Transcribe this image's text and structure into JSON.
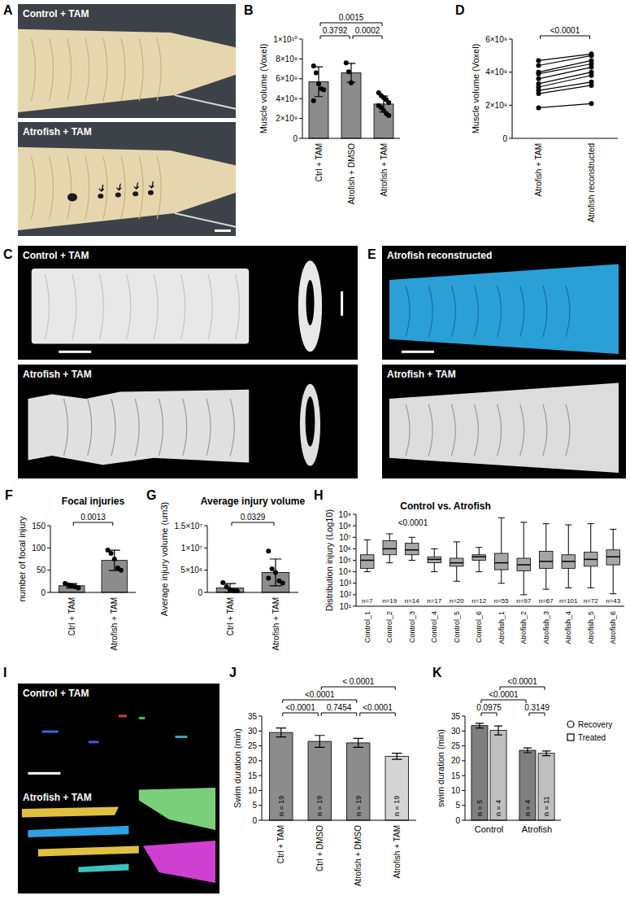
{
  "chart_data": [
    {
      "panel": "B",
      "type": "bar",
      "y_label": "Muscle volume (Voxel)",
      "categories": [
        "Ctrl + TAM",
        "Atrofish + DMSO",
        "Atrofish + TAM"
      ],
      "values": [
        5700000000.0,
        6600000000.0,
        3450000000.0
      ],
      "errors": [
        1500000000.0,
        950000000.0,
        800000000.0
      ],
      "points": [
        [
          7300000000.0,
          6600000000.0,
          5500000000.0,
          5000000000.0,
          4900000000.0,
          3800000000.0
        ],
        [
          7600000000.0,
          6700000000.0,
          5600000000.0
        ],
        [
          4600000000.0,
          4300000000.0,
          4100000000.0,
          3900000000.0,
          3600000000.0,
          3300000000.0,
          3100000000.0,
          2800000000.0,
          2500000000.0,
          2300000000.0
        ]
      ],
      "color": "#8c8c8c",
      "ylim": [
        0,
        10000000000.0
      ],
      "yticks": [
        0,
        {
          "value": 2000000000.0,
          "label": "2×10⁹"
        },
        {
          "value": 4000000000.0,
          "label": "4×10⁹"
        },
        {
          "value": 6000000000.0,
          "label": "6×10⁹"
        },
        {
          "value": 8000000000.0,
          "label": "8×10⁹"
        },
        {
          "value": 10000000000.0,
          "label": "1×10¹⁰"
        }
      ],
      "annotations": [
        {
          "from": 0,
          "to": 1,
          "label": "0.3792"
        },
        {
          "from": 1,
          "to": 2,
          "label": "0.0002"
        },
        {
          "from": 0,
          "to": 2,
          "label": "0.0015"
        }
      ]
    },
    {
      "panel": "D",
      "type": "line",
      "y_label": "Muscle volume (Voxel)",
      "categories": [
        "Atrofish + TAM",
        "Atrofish reconstructed"
      ],
      "series": [
        {
          "values": [
            4700000000.0,
            5100000000.0
          ]
        },
        {
          "values": [
            4400000000.0,
            5000000000.0
          ]
        },
        {
          "values": [
            4000000000.0,
            4700000000.0
          ]
        },
        {
          "values": [
            3900000000.0,
            4500000000.0
          ]
        },
        {
          "values": [
            3600000000.0,
            4300000000.0
          ]
        },
        {
          "values": [
            3300000000.0,
            4000000000.0
          ]
        },
        {
          "values": [
            3100000000.0,
            3800000000.0
          ]
        },
        {
          "values": [
            2900000000.0,
            3400000000.0
          ]
        },
        {
          "values": [
            2700000000.0,
            3200000000.0
          ]
        },
        {
          "values": [
            1850000000.0,
            2100000000.0
          ]
        }
      ],
      "color": "#000000",
      "marker": "circle",
      "ylim": [
        0,
        6000000000.0
      ],
      "yticks": [
        0,
        {
          "value": 2000000000.0,
          "label": "2×10⁹"
        },
        {
          "value": 4000000000.0,
          "label": "4×10⁹"
        },
        {
          "value": 6000000000.0,
          "label": "6×10⁹"
        }
      ],
      "annotations": [
        {
          "from": 0,
          "to": 1,
          "label": "<0.0001"
        }
      ]
    },
    {
      "panel": "F",
      "type": "bar",
      "title": "Focal injuries",
      "y_label": "number of focal injury",
      "categories": [
        "Ctrl + TAM",
        "Atrofish + TAM"
      ],
      "values": [
        15,
        72
      ],
      "errors": [
        5,
        23
      ],
      "points": [
        [
          20,
          17,
          15,
          13,
          10
        ],
        [
          95,
          88,
          75,
          55,
          50
        ]
      ],
      "color": "#8c8c8c",
      "ylim": [
        0,
        150
      ],
      "yticks": [
        0,
        50,
        100,
        150
      ],
      "annotations": [
        {
          "from": 0,
          "to": 1,
          "label": "0.0013"
        }
      ]
    },
    {
      "panel": "G",
      "type": "bar",
      "title": "Average injury volume",
      "y_label": "Average injury volume (um3)",
      "categories": [
        "Ctrl + TAM",
        "Atrofish + TAM"
      ],
      "values": [
        1000000.0,
        4500000.0
      ],
      "errors": [
        1000000.0,
        3000000.0
      ],
      "points": [
        [
          2200000.0,
          1300000.0,
          600000.0,
          400000.0,
          300000.0
        ],
        [
          9300000.0,
          5300000.0,
          4500000.0,
          2600000.0,
          2100000.0,
          3200000.0
        ]
      ],
      "color": "#8c8c8c",
      "ylim": [
        0,
        15000000.0
      ],
      "yticks": [
        0,
        {
          "value": 5000000.0,
          "label": "5×10⁶"
        },
        {
          "value": 10000000.0,
          "label": "1×10⁷"
        },
        {
          "value": 15000000.0,
          "label": "1.5×10⁷"
        }
      ],
      "annotations": [
        {
          "from": 0,
          "to": 1,
          "label": "0.0329"
        }
      ]
    },
    {
      "panel": "H",
      "type": "box",
      "title": "Control vs. Atrofish",
      "subtitle": "<0.0001",
      "y_label": "Distribution injury (Log10)",
      "log": "y",
      "categories": [
        "Control_1",
        "Control_2",
        "Control_3",
        "Control_4",
        "Control_5",
        "Control_6",
        "Atrofish_1",
        "Atrofish_2",
        "Atrofish_3",
        "Atrofish_4",
        "Atrofish_5",
        "Atrofish_6"
      ],
      "boxes": [
        {
          "min": 10000.0,
          "q1": 20000.0,
          "median": 100000.0,
          "q3": 300000.0,
          "max": 6000000.0
        },
        {
          "min": 60000.0,
          "q1": 300000.0,
          "median": 1000000.0,
          "q3": 5000000.0,
          "max": 20000000.0
        },
        {
          "min": 100000.0,
          "q1": 300000.0,
          "median": 800000.0,
          "q3": 3000000.0,
          "max": 10000000.0
        },
        {
          "min": 10000.0,
          "q1": 60000.0,
          "median": 120000.0,
          "q3": 200000.0,
          "max": 1000000.0
        },
        {
          "min": 1500.0,
          "q1": 30000.0,
          "median": 60000.0,
          "q3": 150000.0,
          "max": 4000000.0
        },
        {
          "min": 10000.0,
          "q1": 100000.0,
          "median": 200000.0,
          "q3": 300000.0,
          "max": 1300000.0
        },
        {
          "min": 1000.0,
          "q1": 15000.0,
          "median": 60000.0,
          "q3": 400000.0,
          "max": 500000000.0
        },
        {
          "min": 100.0,
          "q1": 12000.0,
          "median": 40000.0,
          "q3": 150000.0,
          "max": 200000000.0
        },
        {
          "min": 300.0,
          "q1": 20000.0,
          "median": 80000.0,
          "q3": 600000.0,
          "max": 150000000.0
        },
        {
          "min": 400.0,
          "q1": 20000.0,
          "median": 80000.0,
          "q3": 300000.0,
          "max": 120000000.0
        },
        {
          "min": 400.0,
          "q1": 30000.0,
          "median": 120000.0,
          "q3": 500000.0,
          "max": 150000000.0
        },
        {
          "min": 120.0,
          "q1": 40000.0,
          "median": 200000.0,
          "q3": 800000.0,
          "max": 50000000.0
        }
      ],
      "n_labels": [
        "n=7",
        "n=19",
        "n=14",
        "n=17",
        "n=20",
        "n=12",
        "n=55",
        "n=97",
        "n=67",
        "n=101",
        "n=72",
        "n=43"
      ],
      "color": "#a6a6a6",
      "ylim": [
        10,
        1000000000.0
      ],
      "yticks": [
        {
          "value": 10,
          "label": "10¹"
        },
        {
          "value": 100,
          "label": "10²"
        },
        {
          "value": 1000,
          "label": "10³"
        },
        {
          "value": 10000,
          "label": "10⁴"
        },
        {
          "value": 100000,
          "label": "10⁵"
        },
        {
          "value": 1000000,
          "label": "10⁶"
        },
        {
          "value": 10000000,
          "label": "10⁷"
        },
        {
          "value": 100000000,
          "label": "10⁸"
        },
        {
          "value": 1000000000,
          "label": "10⁹"
        }
      ]
    },
    {
      "panel": "J",
      "type": "bar",
      "y_label": "Swim duration (min)",
      "categories": [
        "Ctrl + TAM",
        "Ctrl + DMSO",
        "Atrofish + DMSO",
        "Atrofish + TAM"
      ],
      "values": [
        29.5,
        26.5,
        26,
        21.5
      ],
      "errors": [
        1.5,
        2,
        1.5,
        1
      ],
      "n_labels": [
        "n = 19",
        "n = 19",
        "n = 19",
        "n = 19"
      ],
      "colors": [
        "#8c8c8c",
        "#8c8c8c",
        "#8c8c8c",
        "#d4d4d4"
      ],
      "ylim": [
        0,
        35
      ],
      "yticks": [
        0,
        5,
        10,
        15,
        20,
        25,
        30,
        35
      ],
      "annotations": [
        {
          "from": 0,
          "to": 1,
          "label": "<0.0001"
        },
        {
          "from": 1,
          "to": 2,
          "label": "0.7454"
        },
        {
          "from": 2,
          "to": 3,
          "label": "<0.0001"
        },
        {
          "from": 0,
          "to": 2,
          "label": "<0.0001"
        },
        {
          "from": 1,
          "to": 3,
          "label": "< 0.0001"
        }
      ]
    },
    {
      "panel": "K",
      "type": "bar",
      "y_label": "swim duration (min)",
      "categories": [
        "Control",
        "Atrofish"
      ],
      "series": [
        {
          "name": "Recovery",
          "color": "#7f7f7f",
          "marker": "circle",
          "values": [
            31.8,
            23.5
          ],
          "errors": [
            0.8,
            0.8
          ],
          "n_labels": [
            "n = 5",
            "n = 4"
          ]
        },
        {
          "name": "Treated",
          "color": "#bfbfbf",
          "marker": "square",
          "values": [
            30.2,
            22.5
          ],
          "errors": [
            1.5,
            0.8
          ],
          "n_labels": [
            "n = 4",
            "n = 11"
          ]
        }
      ],
      "ylim": [
        0,
        35
      ],
      "yticks": [
        0,
        5,
        10,
        15,
        20,
        25,
        30,
        35
      ],
      "legend": "right",
      "annotations": [
        {
          "from": 0,
          "to": 1,
          "label": "0.0975"
        },
        {
          "from": 2,
          "to": 3,
          "label": "0.3149"
        },
        {
          "from": 0,
          "to": 2,
          "label": "<0.0001"
        },
        {
          "from": 1,
          "to": 3,
          "label": "<0.0001"
        }
      ]
    }
  ],
  "image_panels": [
    {
      "panel": "A",
      "labels": [
        "Control + TAM",
        "Atrofish + TAM"
      ]
    },
    {
      "panel": "C",
      "labels": [
        "Control + TAM",
        "Atrofish + TAM"
      ]
    },
    {
      "panel": "E",
      "labels": [
        "Atrofish reconstructed",
        "Atrofish + TAM"
      ]
    },
    {
      "panel": "I",
      "labels": [
        "Control + TAM",
        "Atrofish + TAM"
      ]
    }
  ]
}
